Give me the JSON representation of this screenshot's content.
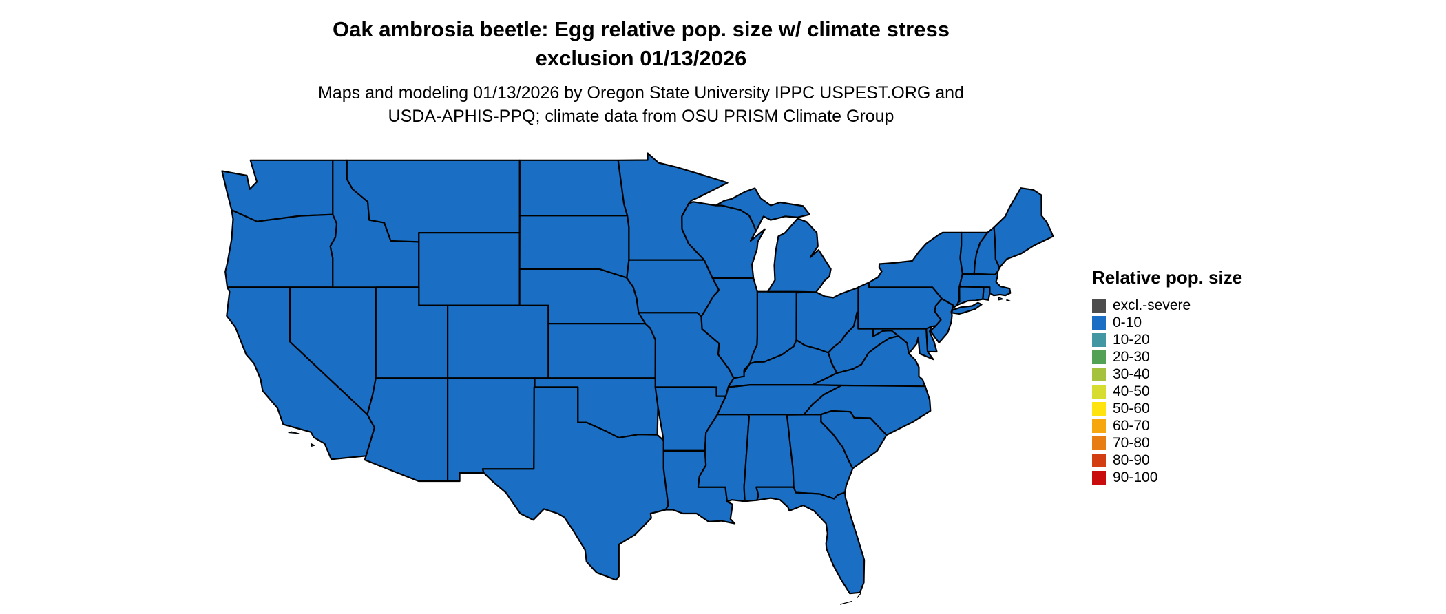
{
  "title": {
    "line1": "Oak ambrosia beetle: Egg relative pop. size w/ climate stress",
    "line2": "exclusion 01/13/2026"
  },
  "subtitle": {
    "line1": "Maps and modeling 01/13/2026 by Oregon State University IPPC USPEST.ORG and",
    "line2": "USDA-APHIS-PPQ; climate data from OSU PRISM Climate Group"
  },
  "legend": {
    "title": "Relative pop. size",
    "items": [
      {
        "label": "excl.-severe",
        "color": "#4d4d4d"
      },
      {
        "label": "0-10",
        "color": "#1a6fc4"
      },
      {
        "label": "10-20",
        "color": "#4397a2"
      },
      {
        "label": "20-30",
        "color": "#53a154"
      },
      {
        "label": "30-40",
        "color": "#a6c13c"
      },
      {
        "label": "40-50",
        "color": "#d6dd30"
      },
      {
        "label": "50-60",
        "color": "#ffe30e"
      },
      {
        "label": "60-70",
        "color": "#f7a70e"
      },
      {
        "label": "70-80",
        "color": "#e87e13"
      },
      {
        "label": "80-90",
        "color": "#d23e11"
      },
      {
        "label": "90-100",
        "color": "#c90c0c"
      }
    ]
  },
  "map": {
    "fill": "#1a6fc4",
    "stroke": "#000000",
    "uniform_class": "0-10"
  }
}
